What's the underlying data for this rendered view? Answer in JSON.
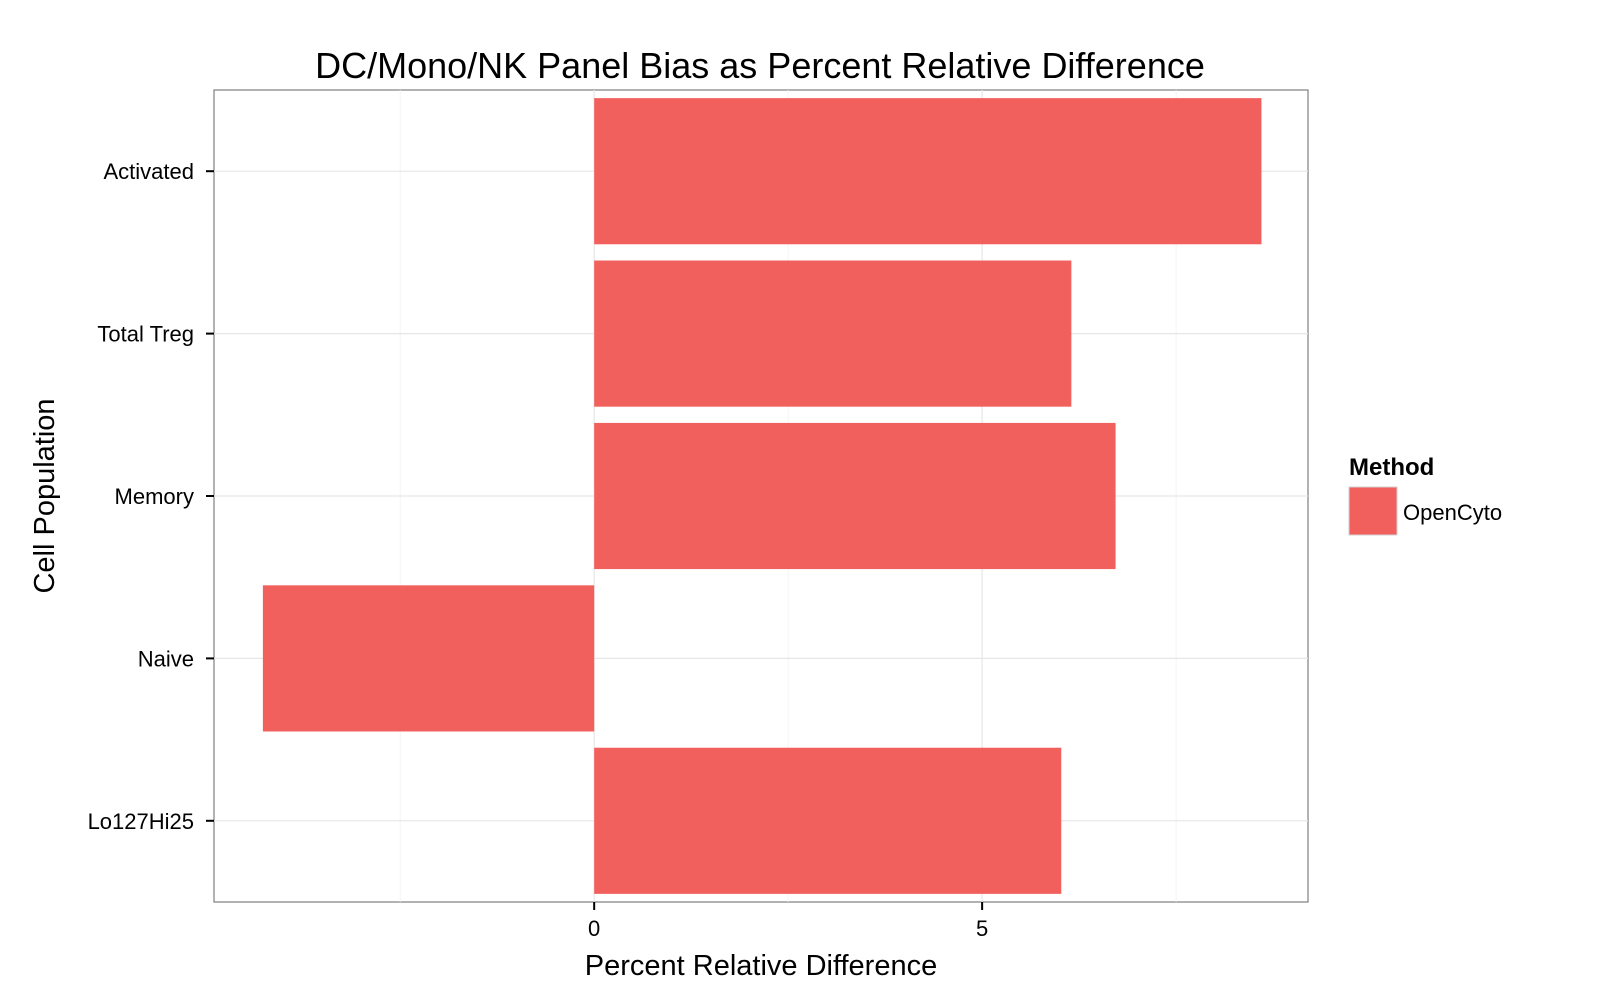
{
  "chart_data": {
    "type": "bar",
    "orientation": "horizontal",
    "title": "DC/Mono/NK Panel Bias as Percent Relative Difference",
    "xlabel": "Percent Relative Difference",
    "ylabel": "Cell Population",
    "categories": [
      "Activated",
      "Total Treg",
      "Memory",
      "Naive",
      "Lo127Hi25"
    ],
    "series": [
      {
        "name": "OpenCyto",
        "color": "#F2605D",
        "values": [
          8.6,
          6.15,
          6.72,
          -4.27,
          6.02
        ]
      }
    ],
    "xlim": [
      -4.9,
      9.2
    ],
    "xticks": [
      0,
      5
    ],
    "xtick_labels": [
      "0",
      "5"
    ],
    "grid": true,
    "legend": {
      "title": "Method",
      "position": "right"
    }
  }
}
